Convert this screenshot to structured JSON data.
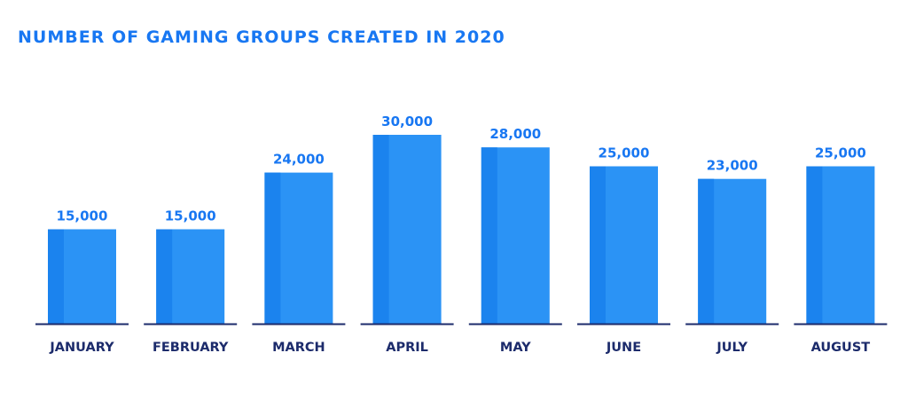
{
  "chart_data": {
    "type": "bar",
    "title": "NUMBER OF GAMING GROUPS CREATED IN 2020",
    "xlabel": "",
    "ylabel": "",
    "categories": [
      "JANUARY",
      "FEBRUARY",
      "MARCH",
      "APRIL",
      "MAY",
      "JUNE",
      "JULY",
      "AUGUST"
    ],
    "values": [
      15000,
      15000,
      24000,
      30000,
      28000,
      25000,
      23000,
      25000
    ],
    "value_labels": [
      "15,000",
      "15,000",
      "24,000",
      "30,000",
      "28,000",
      "25,000",
      "23,000",
      "25,000"
    ],
    "ylim": [
      0,
      30000
    ],
    "grid": false,
    "legend": "none"
  },
  "colors": {
    "title": "#1877F2",
    "bar_main": "#2B93F5",
    "bar_shade": "#1B83EE",
    "value_label": "#1877F2",
    "category_label": "#1C2B6B",
    "baseline": "#1C2B6B"
  }
}
